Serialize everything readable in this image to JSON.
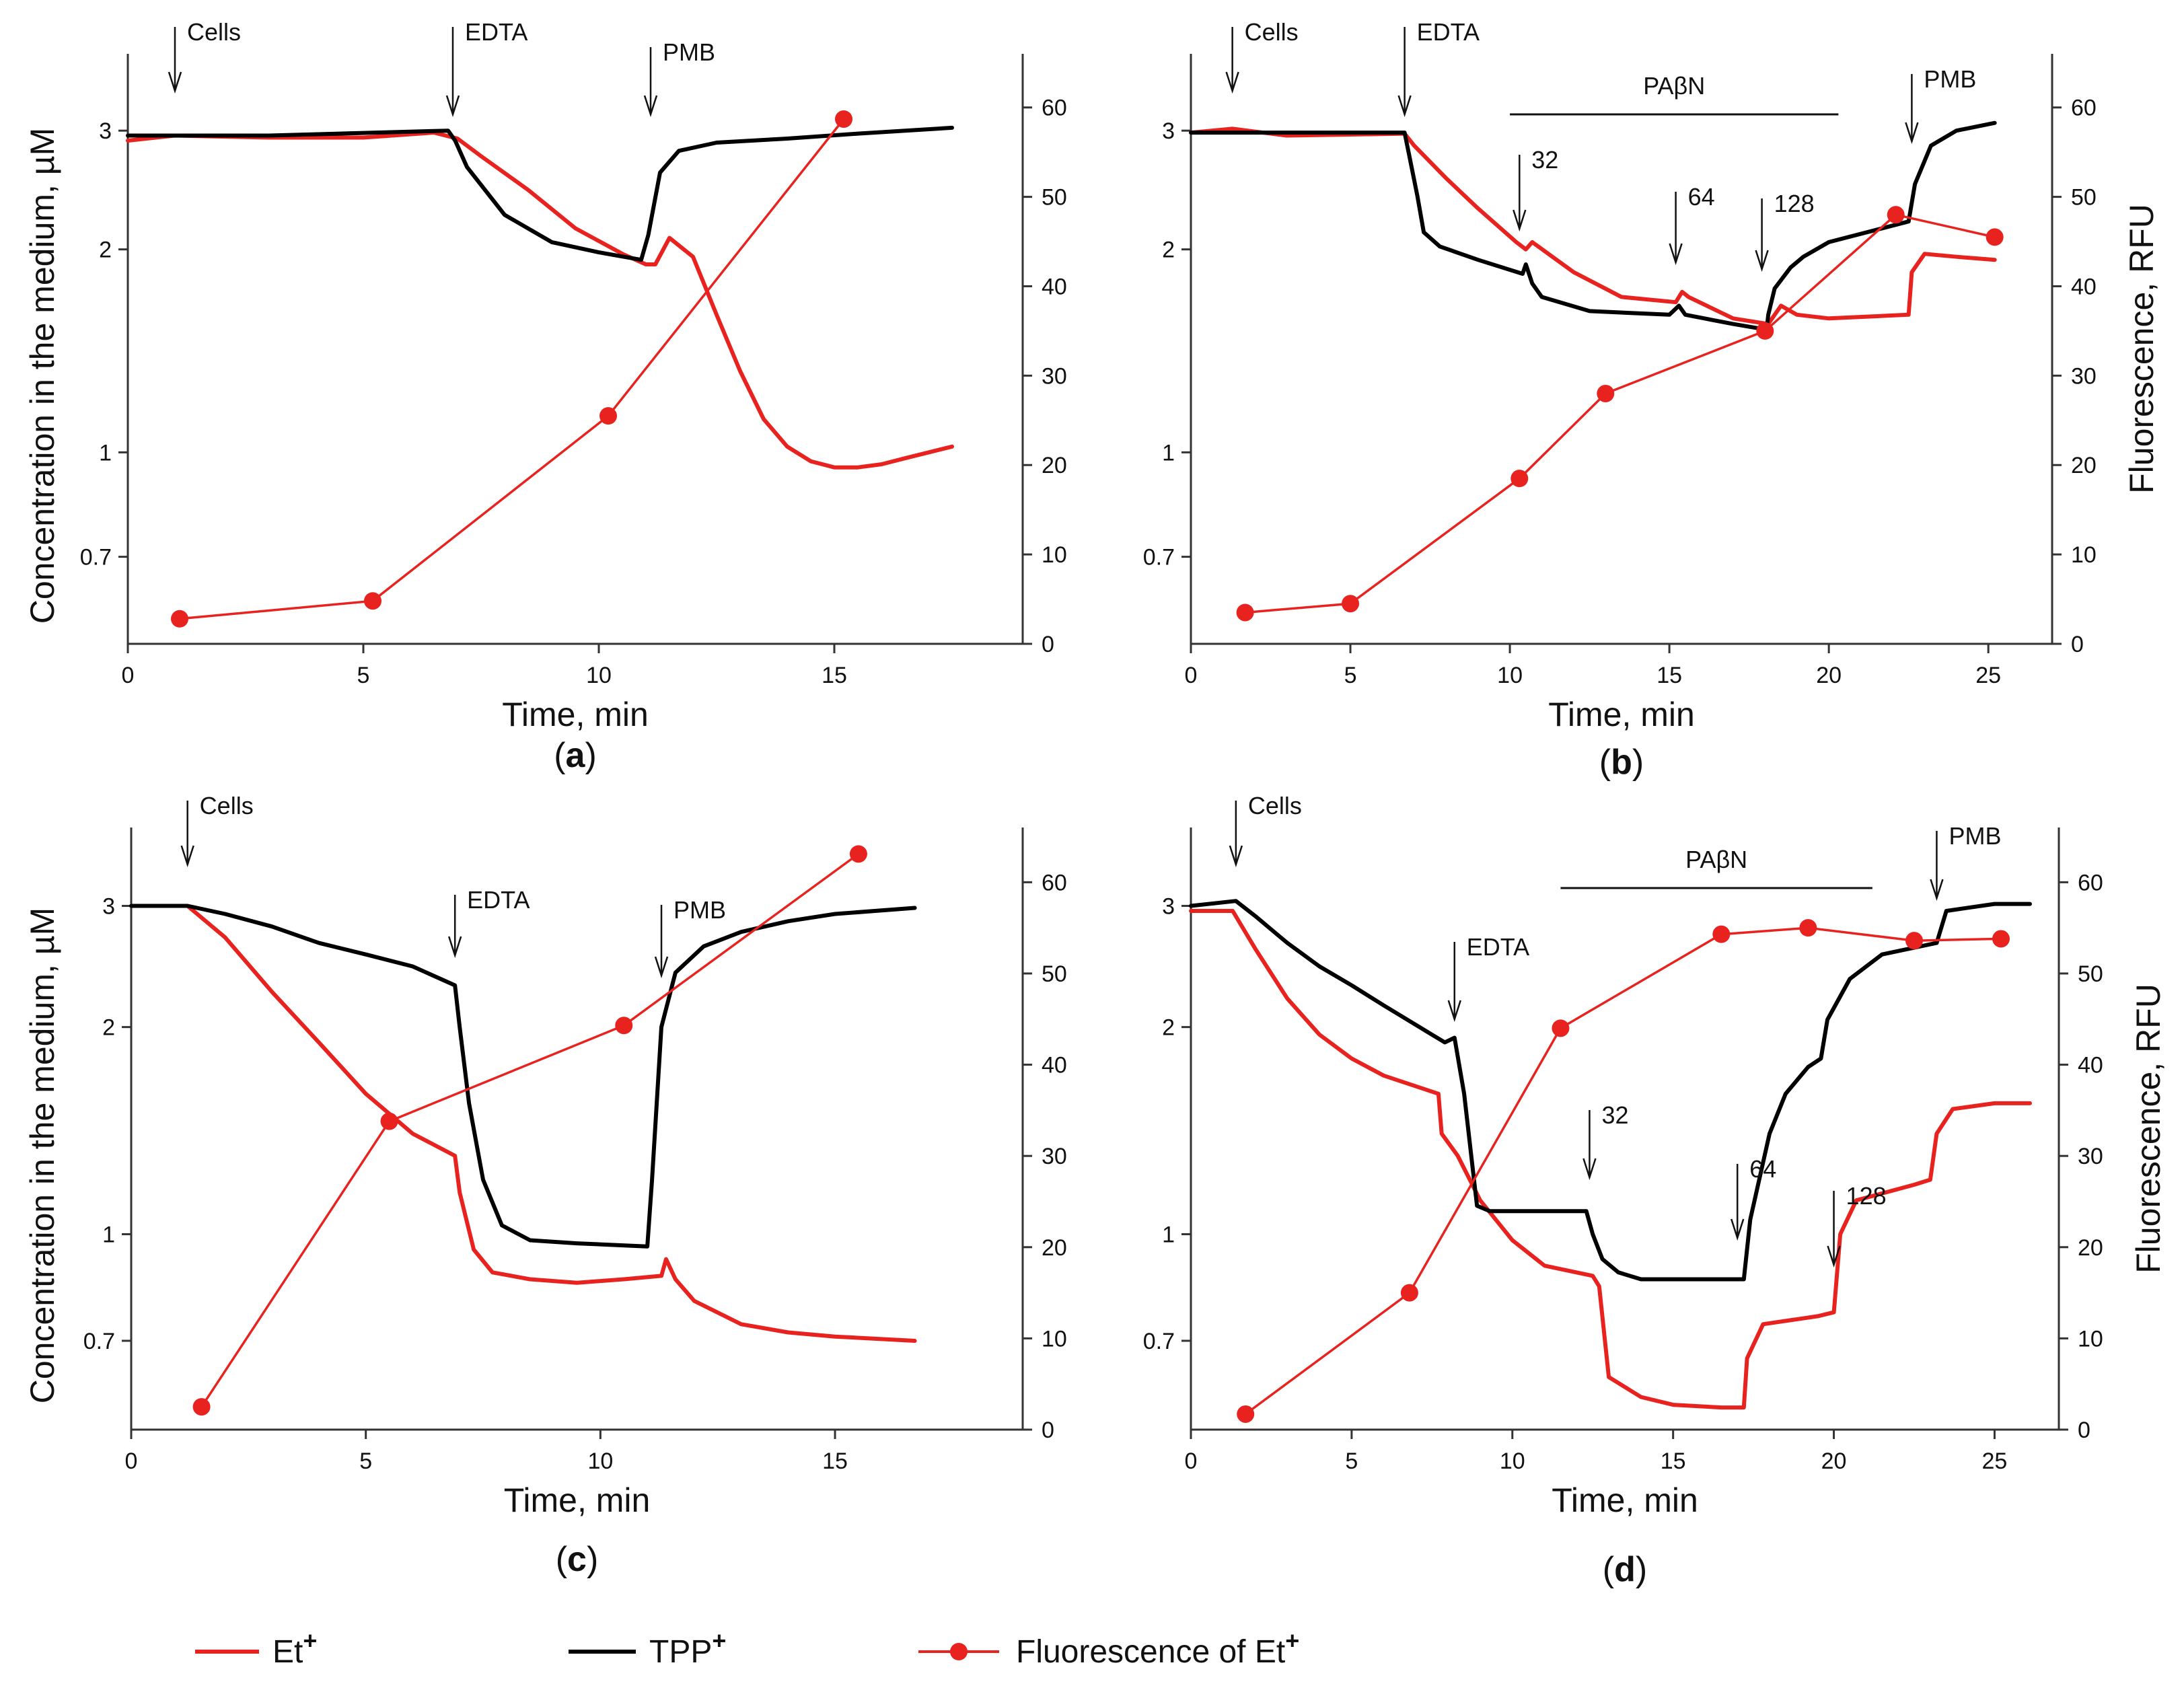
{
  "colors": {
    "et": "#e8231f",
    "tpp": "#000000",
    "fluor": "#e8231f",
    "axis": "#333333",
    "text": "#111111"
  },
  "legend": {
    "et": {
      "base": "Et",
      "sup": "+"
    },
    "tpp": {
      "base": "TPP",
      "sup": "+"
    },
    "fluor": {
      "base": "Fluorescence of Et",
      "sup": "+"
    }
  },
  "chart_data": [
    {
      "panel": "a",
      "label_text": "a",
      "type": "line",
      "xlabel": "Time, min",
      "ylabel": "Concentration in the medium, µM",
      "ylabel_right": "",
      "xlim": [
        0,
        19
      ],
      "xticks": [
        0,
        5,
        10,
        15
      ],
      "xtick_labels": [
        "0",
        "5",
        "10",
        "15"
      ],
      "y_scale": "log",
      "ylim": [
        0.52,
        3.9
      ],
      "yticks": [
        0.7,
        1,
        2,
        3
      ],
      "ytick_labels": [
        "0.7",
        "1",
        "2",
        "3"
      ],
      "y2lim": [
        0,
        66
      ],
      "y2ticks": [
        0,
        10,
        20,
        30,
        40,
        50,
        60
      ],
      "y2tick_labels": [
        "0",
        "10",
        "20",
        "30",
        "40",
        "50",
        "60"
      ],
      "series": [
        {
          "name": "Et+",
          "key": "et",
          "x": [
            0,
            1,
            3,
            5,
            6.5,
            7,
            7.5,
            8.5,
            9.5,
            10.5,
            11,
            11.2,
            11.5,
            12,
            12.5,
            13,
            13.5,
            14,
            14.5,
            15,
            15.5,
            16,
            16.5,
            17.5
          ],
          "y": [
            2.9,
            2.95,
            2.93,
            2.93,
            2.98,
            2.92,
            2.75,
            2.45,
            2.15,
            1.97,
            1.9,
            1.9,
            2.08,
            1.95,
            1.6,
            1.32,
            1.12,
            1.02,
            0.97,
            0.95,
            0.95,
            0.96,
            0.98,
            1.02
          ]
        },
        {
          "name": "TPP+",
          "key": "tpp",
          "x": [
            0,
            3,
            6.8,
            6.95,
            7.2,
            8,
            9,
            10,
            10.9,
            11.05,
            11.3,
            11.7,
            12.5,
            14,
            15.5,
            17.5
          ],
          "y": [
            2.95,
            2.95,
            3.0,
            2.9,
            2.65,
            2.25,
            2.05,
            1.98,
            1.93,
            2.1,
            2.6,
            2.8,
            2.88,
            2.92,
            2.97,
            3.03
          ]
        },
        {
          "name": "Fluorescence of Et+",
          "key": "fluor",
          "x": [
            1.1,
            5.2,
            10.2,
            15.2
          ],
          "y": [
            2.8,
            4.8,
            25.5,
            58.7
          ]
        }
      ],
      "annotations": [
        {
          "text": "Cells",
          "x": 1.0
        },
        {
          "text": "EDTA",
          "x": 6.9
        },
        {
          "text": "PMB",
          "x": 11.1
        }
      ]
    },
    {
      "panel": "b",
      "label_text": "b",
      "type": "line",
      "xlabel": "Time, min",
      "ylabel": "",
      "ylabel_right": "Fluorescence, RFU",
      "xlim": [
        0,
        27
      ],
      "xticks": [
        0,
        5,
        10,
        15,
        20,
        25
      ],
      "xtick_labels": [
        "0",
        "5",
        "10",
        "15",
        "20",
        "25"
      ],
      "y_scale": "log",
      "ylim": [
        0.52,
        3.9
      ],
      "yticks": [
        0.7,
        1,
        2,
        3
      ],
      "ytick_labels": [
        "0.7",
        "1",
        "2",
        "3"
      ],
      "y2lim": [
        0,
        66
      ],
      "y2ticks": [
        0,
        10,
        20,
        30,
        40,
        50,
        60
      ],
      "y2tick_labels": [
        "0",
        "10",
        "20",
        "30",
        "40",
        "50",
        "60"
      ],
      "series": [
        {
          "name": "Et+",
          "key": "et",
          "x": [
            0,
            1.3,
            3,
            5,
            6.7,
            7,
            8,
            9,
            10.2,
            10.5,
            10.7,
            12,
            13.5,
            15.2,
            15.4,
            15.6,
            17,
            18.1,
            18.5,
            19,
            20,
            22.5,
            22.6,
            23,
            24,
            25.2
          ],
          "y": [
            2.98,
            3.02,
            2.95,
            2.96,
            2.97,
            2.85,
            2.55,
            2.3,
            2.05,
            2.0,
            2.05,
            1.85,
            1.7,
            1.67,
            1.73,
            1.7,
            1.58,
            1.55,
            1.65,
            1.6,
            1.58,
            1.6,
            1.85,
            1.97,
            1.95,
            1.93
          ]
        },
        {
          "name": "TPP+",
          "key": "tpp",
          "x": [
            0,
            3,
            6.7,
            6.85,
            7.1,
            7.3,
            7.8,
            9,
            10.4,
            10.5,
            10.7,
            11,
            12.5,
            15,
            15.3,
            15.5,
            17,
            18.05,
            18.1,
            18.3,
            18.8,
            19.2,
            20,
            22.5,
            22.7,
            23.2,
            24,
            25.2
          ],
          "y": [
            2.98,
            2.98,
            2.98,
            2.75,
            2.4,
            2.12,
            2.02,
            1.93,
            1.84,
            1.9,
            1.78,
            1.7,
            1.62,
            1.6,
            1.65,
            1.6,
            1.55,
            1.52,
            1.6,
            1.75,
            1.88,
            1.95,
            2.05,
            2.2,
            2.5,
            2.85,
            3.0,
            3.08
          ]
        },
        {
          "name": "Fluorescence of Et+",
          "key": "fluor",
          "x": [
            1.7,
            5.0,
            10.3,
            13.0,
            18.0,
            22.1,
            25.2
          ],
          "y": [
            3.5,
            4.5,
            18.5,
            28.0,
            35.0,
            48.0,
            45.5
          ]
        }
      ],
      "annotations": [
        {
          "text": "Cells",
          "x": 1.3
        },
        {
          "text": "EDTA",
          "x": 6.7
        },
        {
          "text": "32",
          "x": 10.3
        },
        {
          "text": "64",
          "x": 15.2
        },
        {
          "text": "128",
          "x": 17.9
        },
        {
          "text": "PMB",
          "x": 22.6
        }
      ],
      "bar_annotation": {
        "text": "PAβN",
        "x0": 10.0,
        "x1": 20.3
      }
    },
    {
      "panel": "c",
      "label_text": "c",
      "type": "line",
      "xlabel": "Time, min",
      "ylabel": "Concentration in the medium, µM",
      "ylabel_right": "",
      "xlim": [
        0,
        19
      ],
      "xticks": [
        0,
        5,
        10,
        15
      ],
      "xtick_labels": [
        "0",
        "5",
        "10",
        "15"
      ],
      "y_scale": "log",
      "ylim": [
        0.52,
        3.9
      ],
      "yticks": [
        0.7,
        1,
        2,
        3
      ],
      "ytick_labels": [
        "0.7",
        "1",
        "2",
        "3"
      ],
      "y2lim": [
        0,
        66
      ],
      "y2ticks": [
        0,
        10,
        20,
        30,
        40,
        50,
        60
      ],
      "y2tick_labels": [
        "0",
        "10",
        "20",
        "30",
        "40",
        "50",
        "60"
      ],
      "series": [
        {
          "name": "Et+",
          "key": "et",
          "x": [
            0,
            1.2,
            2,
            3,
            4,
            5,
            6,
            6.9,
            7,
            7.3,
            7.7,
            8.5,
            9.5,
            10.5,
            11.3,
            11.4,
            11.6,
            12,
            13,
            14,
            15,
            16.7
          ],
          "y": [
            3.0,
            3.0,
            2.7,
            2.25,
            1.9,
            1.6,
            1.4,
            1.3,
            1.15,
            0.95,
            0.88,
            0.86,
            0.85,
            0.86,
            0.87,
            0.92,
            0.86,
            0.8,
            0.74,
            0.72,
            0.71,
            0.7
          ]
        },
        {
          "name": "TPP+",
          "key": "tpp",
          "x": [
            0,
            1.2,
            2,
            3,
            4,
            5,
            6,
            6.9,
            7.0,
            7.2,
            7.5,
            7.9,
            8.5,
            9.5,
            11,
            11.1,
            11.3,
            11.6,
            12.2,
            13,
            14,
            15,
            16.7
          ],
          "y": [
            3.0,
            3.0,
            2.92,
            2.8,
            2.65,
            2.55,
            2.45,
            2.3,
            2.0,
            1.55,
            1.2,
            1.03,
            0.98,
            0.97,
            0.96,
            1.2,
            2.0,
            2.4,
            2.62,
            2.75,
            2.85,
            2.92,
            2.98
          ]
        },
        {
          "name": "Fluorescence of Et+",
          "key": "fluor",
          "x": [
            1.5,
            5.5,
            10.5,
            15.5
          ],
          "y": [
            2.5,
            33.8,
            44.3,
            63.1
          ]
        }
      ],
      "annotations": [
        {
          "text": "Cells",
          "x": 1.2
        },
        {
          "text": "EDTA",
          "x": 6.9
        },
        {
          "text": "PMB",
          "x": 11.3
        }
      ]
    },
    {
      "panel": "d",
      "label_text": "d",
      "type": "line",
      "xlabel": "Time, min",
      "ylabel": "",
      "ylabel_right": "Fluorescence, RFU",
      "xlim": [
        0,
        27
      ],
      "xticks": [
        0,
        5,
        10,
        15,
        20,
        25
      ],
      "xtick_labels": [
        "0",
        "5",
        "10",
        "15",
        "20",
        "25"
      ],
      "y_scale": "log",
      "ylim": [
        0.52,
        3.9
      ],
      "yticks": [
        0.7,
        1,
        2,
        3
      ],
      "ytick_labels": [
        "0.7",
        "1",
        "2",
        "3"
      ],
      "y2lim": [
        0,
        66
      ],
      "y2ticks": [
        0,
        10,
        20,
        30,
        40,
        50,
        60
      ],
      "y2tick_labels": [
        "0",
        "10",
        "20",
        "30",
        "40",
        "50",
        "60"
      ],
      "series": [
        {
          "name": "Et+",
          "key": "et",
          "x": [
            0,
            1.3,
            2,
            3,
            4,
            5,
            6,
            7.7,
            7.8,
            8.3,
            9,
            10,
            11,
            12.5,
            12.7,
            13,
            14,
            15,
            16.5,
            17.2,
            17.3,
            17.8,
            19.5,
            20,
            20.2,
            20.7,
            22.5,
            23,
            23.2,
            23.7,
            25,
            26.1
          ],
          "y": [
            2.95,
            2.95,
            2.6,
            2.2,
            1.95,
            1.8,
            1.7,
            1.6,
            1.4,
            1.3,
            1.12,
            0.98,
            0.9,
            0.87,
            0.84,
            0.62,
            0.58,
            0.565,
            0.56,
            0.56,
            0.66,
            0.74,
            0.76,
            0.77,
            1.0,
            1.12,
            1.18,
            1.2,
            1.4,
            1.52,
            1.55,
            1.55
          ]
        },
        {
          "name": "TPP+",
          "key": "tpp",
          "x": [
            0,
            1.4,
            2,
            3,
            4,
            5,
            6,
            7.5,
            7.9,
            8.2,
            8.5,
            8.9,
            9.3,
            12.3,
            12.5,
            12.8,
            13.3,
            14,
            15,
            17.2,
            17.4,
            18,
            18.5,
            19.2,
            19.6,
            19.8,
            20.5,
            21.5,
            23.2,
            23.5,
            25,
            26.1
          ],
          "y": [
            3.0,
            3.05,
            2.9,
            2.65,
            2.45,
            2.3,
            2.15,
            1.95,
            1.9,
            1.93,
            1.6,
            1.1,
            1.08,
            1.08,
            1.0,
            0.92,
            0.88,
            0.86,
            0.86,
            0.86,
            1.05,
            1.4,
            1.6,
            1.75,
            1.8,
            2.05,
            2.35,
            2.55,
            2.65,
            2.95,
            3.02,
            3.02
          ]
        },
        {
          "name": "Fluorescence of Et+",
          "key": "fluor",
          "x": [
            1.7,
            6.8,
            11.5,
            16.5,
            19.2,
            22.5,
            25.2
          ],
          "y": [
            1.7,
            15.0,
            44.0,
            54.3,
            55.0,
            53.6,
            53.8
          ]
        }
      ],
      "annotations": [
        {
          "text": "Cells",
          "x": 1.4
        },
        {
          "text": "EDTA",
          "x": 8.2
        },
        {
          "text": "32",
          "x": 12.4
        },
        {
          "text": "64",
          "x": 17.0
        },
        {
          "text": "128",
          "x": 20.0
        },
        {
          "text": "PMB",
          "x": 23.2
        }
      ],
      "bar_annotation": {
        "text": "PAβN",
        "x0": 11.5,
        "x1": 21.2
      }
    }
  ]
}
